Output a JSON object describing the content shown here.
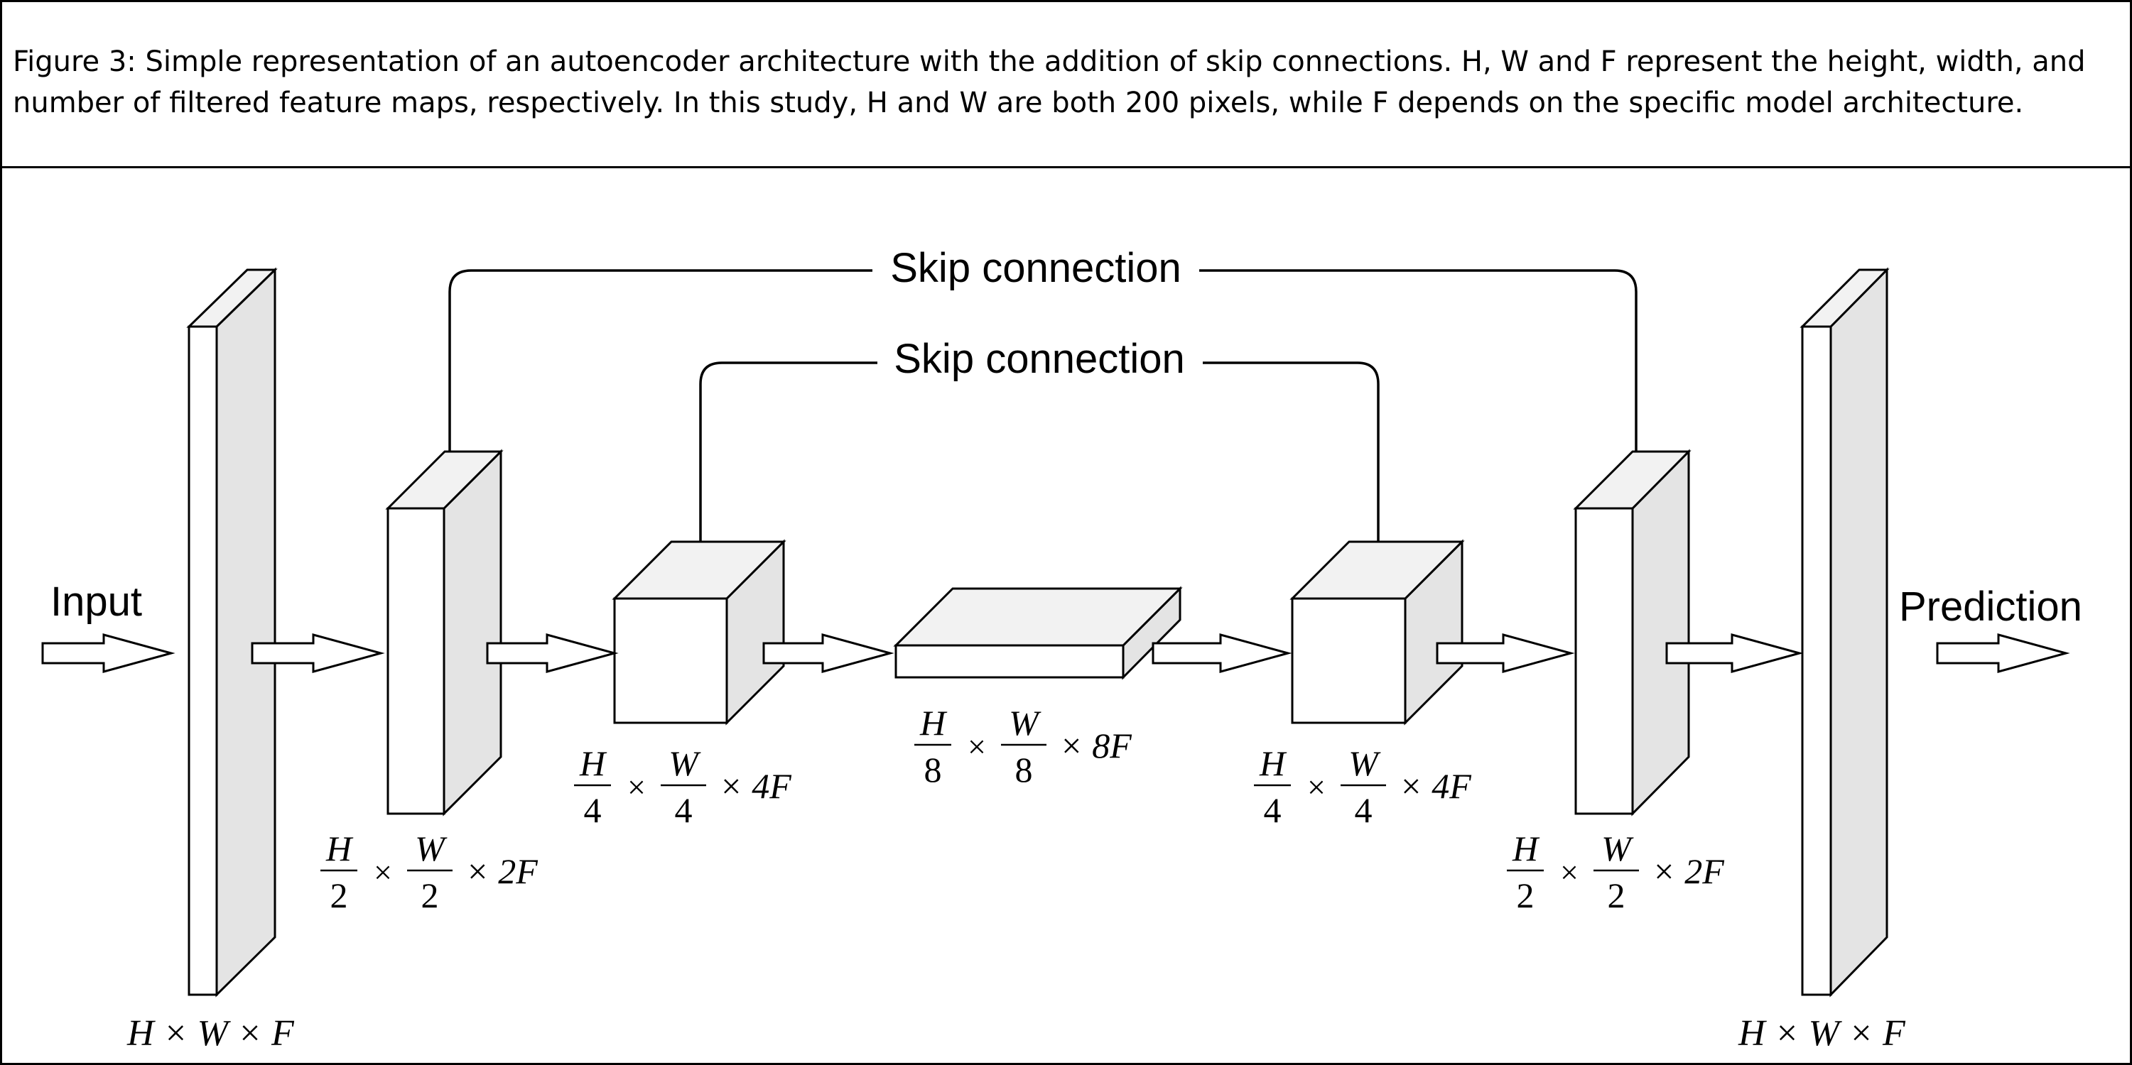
{
  "caption": "Figure 3: Simple representation of an autoencoder architecture with the addition of skip connections. H, W and F represent the height, width, and number of filtered feature maps, respectively. In this study, H and W are both 200 pixels, while F depends on the specific model architecture.",
  "labels": {
    "input": "Input",
    "prediction": "Prediction",
    "skip_outer": "Skip connection",
    "skip_inner": "Skip connection"
  },
  "dims": {
    "full": "H × W × F",
    "half": {
      "h_num": "H",
      "h_den": "2",
      "w_num": "W",
      "w_den": "2",
      "times": "×",
      "tail": "× 2F"
    },
    "quarter": {
      "h_num": "H",
      "h_den": "4",
      "w_num": "W",
      "w_den": "4",
      "times": "×",
      "tail": "× 4F"
    },
    "eighth": {
      "h_num": "H",
      "h_den": "8",
      "w_num": "W",
      "w_den": "8",
      "times": "×",
      "tail": "× 8F"
    }
  }
}
